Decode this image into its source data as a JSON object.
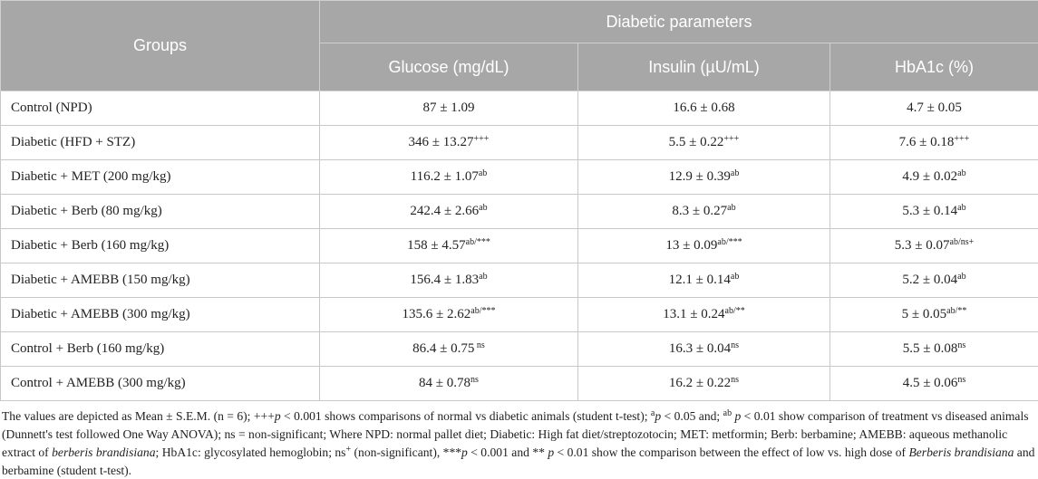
{
  "table": {
    "group_header": "Groups",
    "span_header": "Diabetic parameters",
    "columns": [
      "Glucose (mg/dL)",
      "Insulin (µU/mL)",
      "HbA1c (%)"
    ],
    "rows": [
      {
        "group": "Control (NPD)",
        "cells": [
          {
            "text": "87 ± 1.09"
          },
          {
            "text": "16.6 ± 0.68"
          },
          {
            "text": "4.7 ± 0.05"
          }
        ]
      },
      {
        "group": "Diabetic (HFD + STZ)",
        "cells": [
          {
            "text": "346 ± 13.27",
            "sup": "+++"
          },
          {
            "text": "5.5 ± 0.22",
            "sup": "+++"
          },
          {
            "text": "7.6 ± 0.18",
            "sup": "+++"
          }
        ]
      },
      {
        "group": "Diabetic + MET (200 mg/kg)",
        "cells": [
          {
            "text": "116.2 ± 1.07",
            "sup": "ab"
          },
          {
            "text": "12.9 ± 0.39",
            "sup": "ab"
          },
          {
            "text": "4.9 ± 0.02",
            "sup": "ab"
          }
        ]
      },
      {
        "group": "Diabetic + Berb (80 mg/kg)",
        "cells": [
          {
            "text": "242.4 ± 2.66",
            "sup": "ab"
          },
          {
            "text": "8.3 ± 0.27",
            "sup": "ab"
          },
          {
            "text": "5.3 ± 0.14",
            "sup": "ab"
          }
        ]
      },
      {
        "group": "Diabetic + Berb (160 mg/kg)",
        "cells": [
          {
            "text": "158 ± 4.57",
            "sup": "ab/***"
          },
          {
            "text": "13 ± 0.09",
            "sup": "ab/***"
          },
          {
            "text": "5.3 ± 0.07",
            "sup": "ab/ns+"
          }
        ]
      },
      {
        "group": "Diabetic + AMEBB (150 mg/kg)",
        "cells": [
          {
            "text": "156.4 ± 1.83",
            "sup": "ab"
          },
          {
            "text": "12.1 ± 0.14",
            "sup": "ab"
          },
          {
            "text": "5.2 ± 0.04",
            "sup": "ab"
          }
        ]
      },
      {
        "group": "Diabetic + AMEBB (300 mg/kg)",
        "cells": [
          {
            "text": "135.6 ± 2.62",
            "sup": "ab/***"
          },
          {
            "text": "13.1 ± 0.24",
            "sup": "ab/**"
          },
          {
            "text": "5 ± 0.05",
            "sup": "ab/**"
          }
        ]
      },
      {
        "group": "Control + Berb (160 mg/kg)",
        "cells": [
          {
            "text": "86.4 ± 0.75",
            "sup": " ns"
          },
          {
            "text": "16.3 ± 0.04",
            "sup": "ns"
          },
          {
            "text": "5.5 ± 0.08",
            "sup": "ns"
          }
        ]
      },
      {
        "group": "Control + AMEBB (300 mg/kg)",
        "cells": [
          {
            "text": "84 ± 0.78",
            "sup": "ns"
          },
          {
            "text": "16.2 ± 0.22",
            "sup": "ns"
          },
          {
            "text": "4.5 ± 0.06",
            "sup": "ns"
          }
        ]
      }
    ]
  },
  "footnote": [
    {
      "text": "The values are depicted as Mean ± S.E.M. (n = 6); +++"
    },
    {
      "text": "p",
      "style": "italic"
    },
    {
      "text": " ˂ 0.001 shows comparisons of normal vs diabetic animals (student t-test); "
    },
    {
      "text": "a",
      "style": "sup"
    },
    {
      "text": "p",
      "style": "italic"
    },
    {
      "text": " < 0.05 and; "
    },
    {
      "text": "ab",
      "style": "sup"
    },
    {
      "text": " p",
      "style": "italic"
    },
    {
      "text": " < 0.01 show comparison of treatment vs diseased animals (Dunnett's test followed One Way ANOVA); ns = non-significant; Where NPD: normal pallet diet; Diabetic: High fat diet/streptozotocin; MET: metformin; Berb: berbamine; AMEBB: aqueous methanolic extract of "
    },
    {
      "text": "berberis brandisiana",
      "style": "italic"
    },
    {
      "text": "; HbA1c: glycosylated hemoglobin; ns"
    },
    {
      "text": "+",
      "style": "sup"
    },
    {
      "text": " (non-significant), ***"
    },
    {
      "text": "p",
      "style": "italic"
    },
    {
      "text": " < 0.001 and ** "
    },
    {
      "text": "p",
      "style": "italic"
    },
    {
      "text": " < 0.01 show the comparison between the effect of low vs. high dose of "
    },
    {
      "text": "Berberis brandisiana",
      "style": "italic"
    },
    {
      "text": " and berbamine (student t-test)."
    }
  ]
}
